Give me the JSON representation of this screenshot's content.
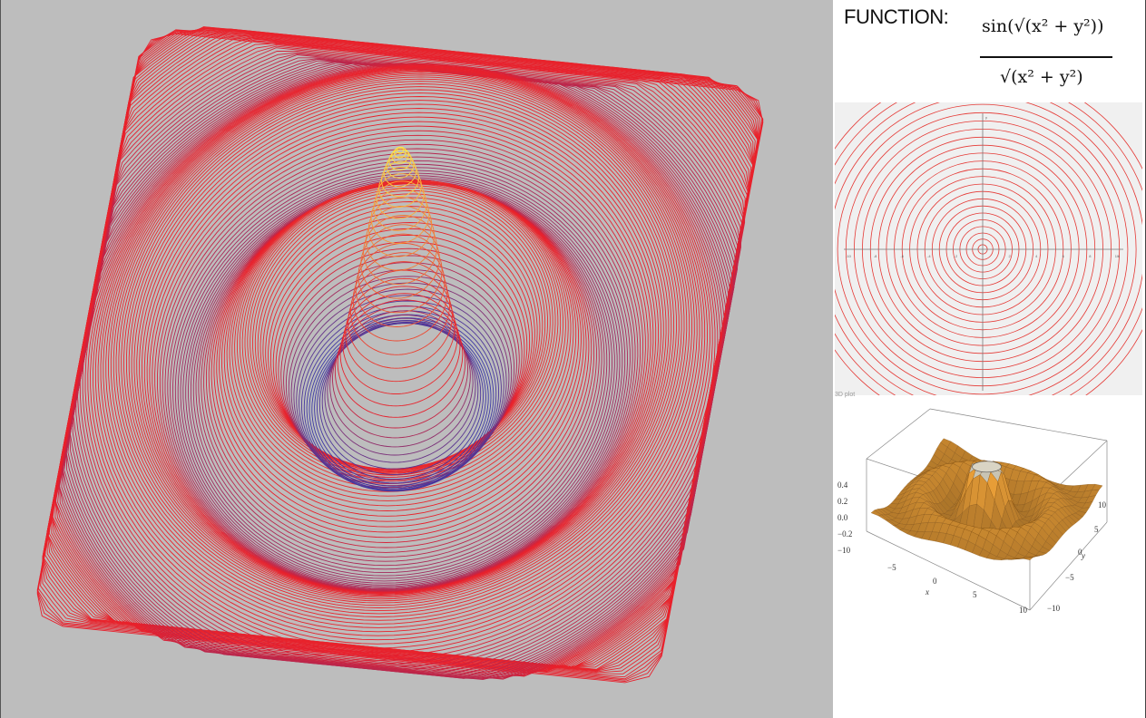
{
  "sidebar": {
    "function_label": "FUNCTION:",
    "formula": {
      "numerator": "sin(√(x² + y²))",
      "denominator": "√(x² + y²)"
    },
    "small_label": "3D plot"
  },
  "main_view": {
    "palette": {
      "low": "#3a3aa8",
      "mid": "#e8202c",
      "high": "#ffe640"
    },
    "background": "#bdbdbd"
  },
  "contour_view": {
    "background": "#f0f0f0",
    "line_color": "#e53935",
    "x_ticks": [
      "-10",
      "-8",
      "-6",
      "-4",
      "-2",
      "2",
      "4",
      "6",
      "8",
      "10"
    ],
    "x_axis_label": "x",
    "y_axis_label": "y"
  },
  "surface_view": {
    "z_ticks": [
      "0.4",
      "0.2",
      "0.0",
      "−0.2",
      "−10"
    ],
    "x_ticks": [
      "−5",
      "0",
      "5",
      "10"
    ],
    "y_ticks": [
      "10",
      "5",
      "0",
      "−5",
      "−10"
    ],
    "x_label": "x",
    "y_label": "y",
    "surface_color": "#f3a53a"
  }
}
